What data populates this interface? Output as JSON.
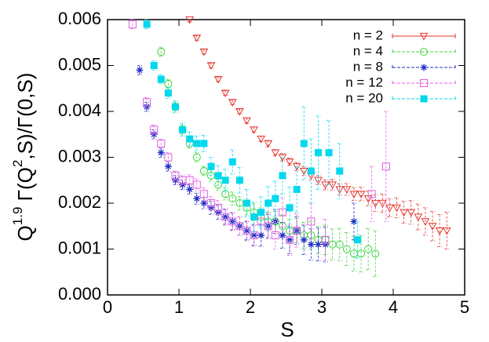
{
  "chart_data": {
    "type": "scatter",
    "x_label": "S",
    "y_label": {
      "base": "Q",
      "exp": "1.9",
      "mid": " Γ(Q",
      "exp2": "2",
      "rest": ",S)/Γ(0,S)"
    },
    "xlim": [
      0,
      5
    ],
    "xticks": [
      0,
      1,
      2,
      3,
      4,
      5
    ],
    "ylim": [
      0,
      0.006
    ],
    "yticks": [
      {
        "value": 0,
        "label": "0.000"
      },
      {
        "value": 0.001,
        "label": "0.001"
      },
      {
        "value": 0.002,
        "label": "0.002"
      },
      {
        "value": 0.003,
        "label": "0.003"
      },
      {
        "value": 0.004,
        "label": "0.004"
      },
      {
        "value": 0.005,
        "label": "0.005"
      },
      {
        "value": 0.006,
        "label": "0.006"
      }
    ],
    "legend": "top-right",
    "series": [
      {
        "name": "n = 2",
        "color": "#e3342c",
        "marker": "triangle-down",
        "x": [
          1.15,
          1.25,
          1.35,
          1.45,
          1.55,
          1.65,
          1.75,
          1.85,
          1.95,
          2.05,
          2.15,
          2.25,
          2.35,
          2.45,
          2.55,
          2.65,
          2.75,
          2.85,
          2.95,
          3.05,
          3.15,
          3.25,
          3.35,
          3.45,
          3.55,
          3.65,
          3.75,
          3.85,
          3.95,
          4.05,
          4.15,
          4.25,
          4.35,
          4.45,
          4.55,
          4.65,
          4.75
        ],
        "values": [
          0.006,
          0.0056,
          0.0053,
          0.005,
          0.0047,
          0.0044,
          0.0042,
          0.004,
          0.0038,
          0.0036,
          0.0034,
          0.0033,
          0.0031,
          0.003,
          0.0029,
          0.0028,
          0.0027,
          0.0026,
          0.0025,
          0.0024,
          0.0024,
          0.0023,
          0.0023,
          0.0022,
          0.0022,
          0.0021,
          0.002,
          0.002,
          0.0019,
          0.0019,
          0.0018,
          0.0018,
          0.0017,
          0.0016,
          0.0015,
          0.0014,
          0.0014
        ],
        "errors": [
          5e-05,
          5e-05,
          5e-05,
          5e-05,
          5e-05,
          5e-05,
          5e-05,
          5e-05,
          6e-05,
          6e-05,
          6e-05,
          7e-05,
          7e-05,
          8e-05,
          8e-05,
          9e-05,
          0.0001,
          0.0001,
          0.0001,
          0.00011,
          0.00012,
          0.00012,
          0.00013,
          0.00014,
          0.00015,
          0.00016,
          0.00018,
          0.0002,
          0.0002,
          0.00022,
          0.00024,
          0.00026,
          0.00028,
          0.0003,
          0.00032,
          0.00035,
          0.0004
        ]
      },
      {
        "name": "n = 4",
        "color": "#3dd43d",
        "marker": "circle",
        "x": [
          0.75,
          0.85,
          0.95,
          1.05,
          1.15,
          1.25,
          1.35,
          1.45,
          1.55,
          1.65,
          1.75,
          1.85,
          1.95,
          2.05,
          2.15,
          2.25,
          2.35,
          2.45,
          2.55,
          2.65,
          2.75,
          2.85,
          2.95,
          3.05,
          3.15,
          3.25,
          3.35,
          3.45,
          3.55,
          3.65,
          3.75
        ],
        "values": [
          0.0053,
          0.0046,
          0.0041,
          0.0036,
          0.0033,
          0.003,
          0.0027,
          0.0026,
          0.0024,
          0.0022,
          0.0021,
          0.002,
          0.0019,
          0.0018,
          0.0017,
          0.0016,
          0.0016,
          0.0015,
          0.0014,
          0.0014,
          0.0013,
          0.0013,
          0.0012,
          0.0012,
          0.0011,
          0.0011,
          0.001,
          0.0009,
          0.0009,
          0.001,
          0.0009
        ],
        "errors": [
          0.0001,
          0.0001,
          0.0001,
          0.0001,
          0.0001,
          0.0001,
          0.0001,
          0.00012,
          0.00012,
          0.00013,
          0.00014,
          0.00015,
          0.00016,
          0.00018,
          0.0002,
          0.0002,
          0.00022,
          0.00024,
          0.00025,
          0.00026,
          0.00028,
          0.0003,
          0.0003,
          0.00032,
          0.00034,
          0.00035,
          0.00036,
          0.00038,
          0.0004,
          0.00045,
          0.0005
        ]
      },
      {
        "name": "n = 8",
        "color": "#1f2ec4",
        "marker": "star",
        "x": [
          0.45,
          0.55,
          0.65,
          0.75,
          0.85,
          0.95,
          1.05,
          1.15,
          1.25,
          1.35,
          1.45,
          1.55,
          1.65,
          1.75,
          1.85,
          1.95,
          2.05,
          2.15,
          2.25,
          2.35,
          2.45,
          2.55,
          2.65,
          2.75,
          2.85,
          2.95,
          3.05,
          3.45
        ],
        "values": [
          0.0049,
          0.0041,
          0.0035,
          0.0031,
          0.0028,
          0.0025,
          0.0024,
          0.0023,
          0.0021,
          0.002,
          0.0019,
          0.0018,
          0.0017,
          0.0016,
          0.0015,
          0.0014,
          0.0013,
          0.0013,
          0.0015,
          0.0016,
          0.0013,
          0.0012,
          0.0014,
          0.0012,
          0.0011,
          0.0011,
          0.0011,
          0.0016
        ],
        "errors": [
          0.0001,
          0.0001,
          0.0001,
          0.0001,
          0.0001,
          0.0001,
          0.0001,
          0.0001,
          0.00012,
          0.00012,
          0.00014,
          0.00015,
          0.00016,
          0.00018,
          0.0002,
          0.0002,
          0.00022,
          0.00024,
          0.00025,
          0.00026,
          0.00028,
          0.0003,
          0.0003,
          0.00032,
          0.00034,
          0.00036,
          0.00038,
          0.0004
        ]
      },
      {
        "name": "n = 12",
        "color": "#e15fe1",
        "marker": "square",
        "x": [
          0.35,
          0.55,
          0.65,
          0.75,
          0.85,
          0.95,
          1.05,
          1.15,
          1.25,
          1.35,
          1.45,
          1.55,
          1.65,
          1.75,
          1.85,
          1.95,
          2.05,
          2.15,
          2.25,
          2.35,
          2.45,
          2.55,
          2.65,
          2.85,
          3.05,
          3.7,
          3.9
        ],
        "values": [
          0.0059,
          0.0042,
          0.0036,
          0.0033,
          0.003,
          0.0026,
          0.0025,
          0.0025,
          0.0024,
          0.0022,
          0.002,
          0.0019,
          0.0017,
          0.0016,
          0.0015,
          0.0014,
          0.0013,
          0.0016,
          0.0015,
          0.0013,
          0.0018,
          0.0012,
          0.0014,
          0.0016,
          0.0012,
          0.0022,
          0.0028
        ],
        "errors": [
          0.0001,
          0.0001,
          0.0001,
          0.0001,
          0.0001,
          0.0001,
          0.0001,
          0.00012,
          0.00013,
          0.00014,
          0.00015,
          0.00016,
          0.00018,
          0.0002,
          0.0002,
          0.00022,
          0.00024,
          0.00026,
          0.00028,
          0.0003,
          0.00032,
          0.00034,
          0.00036,
          0.0004,
          0.00045,
          0.0006,
          0.0012
        ]
      },
      {
        "name": "n = 20",
        "color": "#00d8ee",
        "marker": "filled-square",
        "x": [
          0.55,
          0.65,
          0.75,
          0.85,
          0.95,
          1.05,
          1.15,
          1.25,
          1.35,
          1.45,
          1.55,
          1.65,
          1.75,
          1.85,
          1.95,
          2.05,
          2.15,
          2.25,
          2.35,
          2.45,
          2.55,
          2.65,
          2.75,
          2.85,
          2.95,
          3.1,
          3.25,
          3.5
        ],
        "values": [
          0.0059,
          0.005,
          0.0047,
          0.0044,
          0.0041,
          0.0036,
          0.0034,
          0.0033,
          0.0033,
          0.0028,
          0.0026,
          0.0025,
          0.0029,
          0.0025,
          0.002,
          0.0017,
          0.0018,
          0.002,
          0.0021,
          0.0026,
          0.0019,
          0.0023,
          0.0033,
          0.0027,
          0.0031,
          0.0031,
          0.0027,
          0.0012
        ],
        "errors": [
          0.0001,
          0.0001,
          0.0001,
          0.00012,
          0.00013,
          0.00014,
          0.00015,
          0.00016,
          0.00018,
          0.0002,
          0.00022,
          0.00024,
          0.00026,
          0.00028,
          0.0003,
          0.00032,
          0.00034,
          0.00036,
          0.00038,
          0.0004,
          0.00045,
          0.0005,
          0.0008,
          0.0007,
          0.0008,
          0.0007,
          0.0006,
          0.0004
        ]
      }
    ]
  }
}
